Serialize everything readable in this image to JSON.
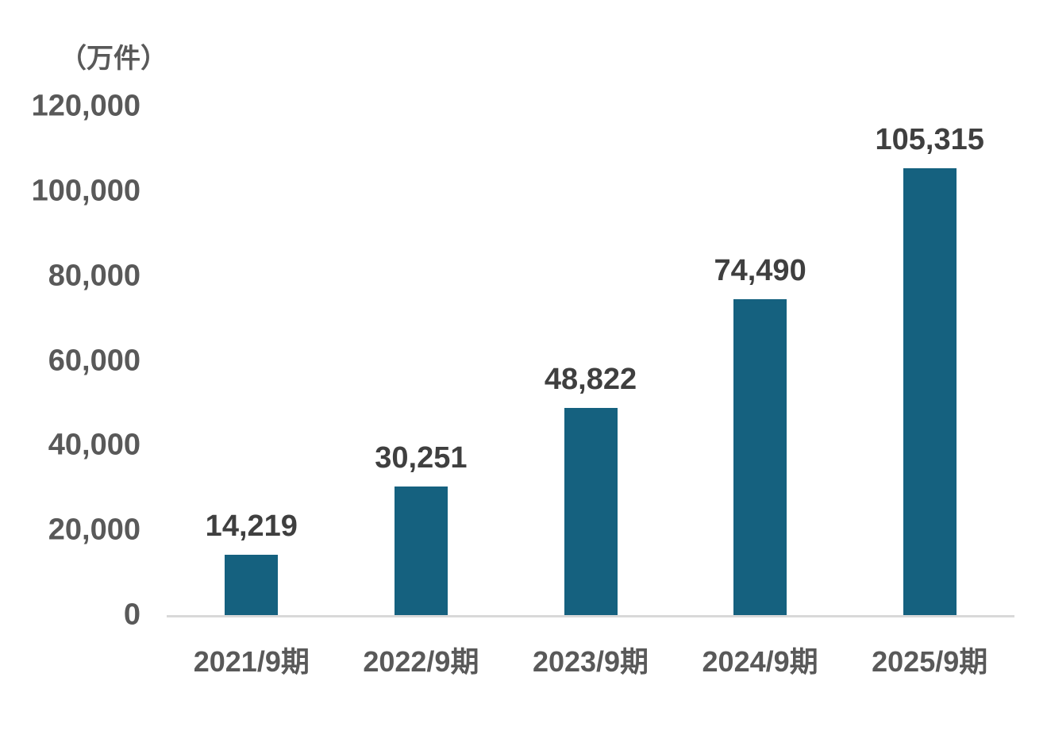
{
  "chart_data": {
    "type": "bar",
    "title": "",
    "unit_label": "（万件）",
    "categories": [
      "2021/9期",
      "2022/9期",
      "2023/9期",
      "2024/9期",
      "2025/9期"
    ],
    "values": [
      14219,
      30251,
      48822,
      74490,
      105315
    ],
    "value_labels": [
      "14,219",
      "30,251",
      "48,822",
      "74,490",
      "105,315"
    ],
    "ylim": [
      0,
      120000
    ],
    "yticks": [
      0,
      20000,
      40000,
      60000,
      80000,
      100000,
      120000
    ],
    "ytick_labels": [
      "0",
      "20,000",
      "40,000",
      "60,000",
      "80,000",
      "100,000",
      "120,000"
    ],
    "grid": false,
    "legend": "none",
    "colors": {
      "bar": "#15617f",
      "axis_line": "#d9d9d9",
      "tick_text": "#595959",
      "value_text": "#3f3f3f",
      "background": "#ffffff"
    }
  }
}
